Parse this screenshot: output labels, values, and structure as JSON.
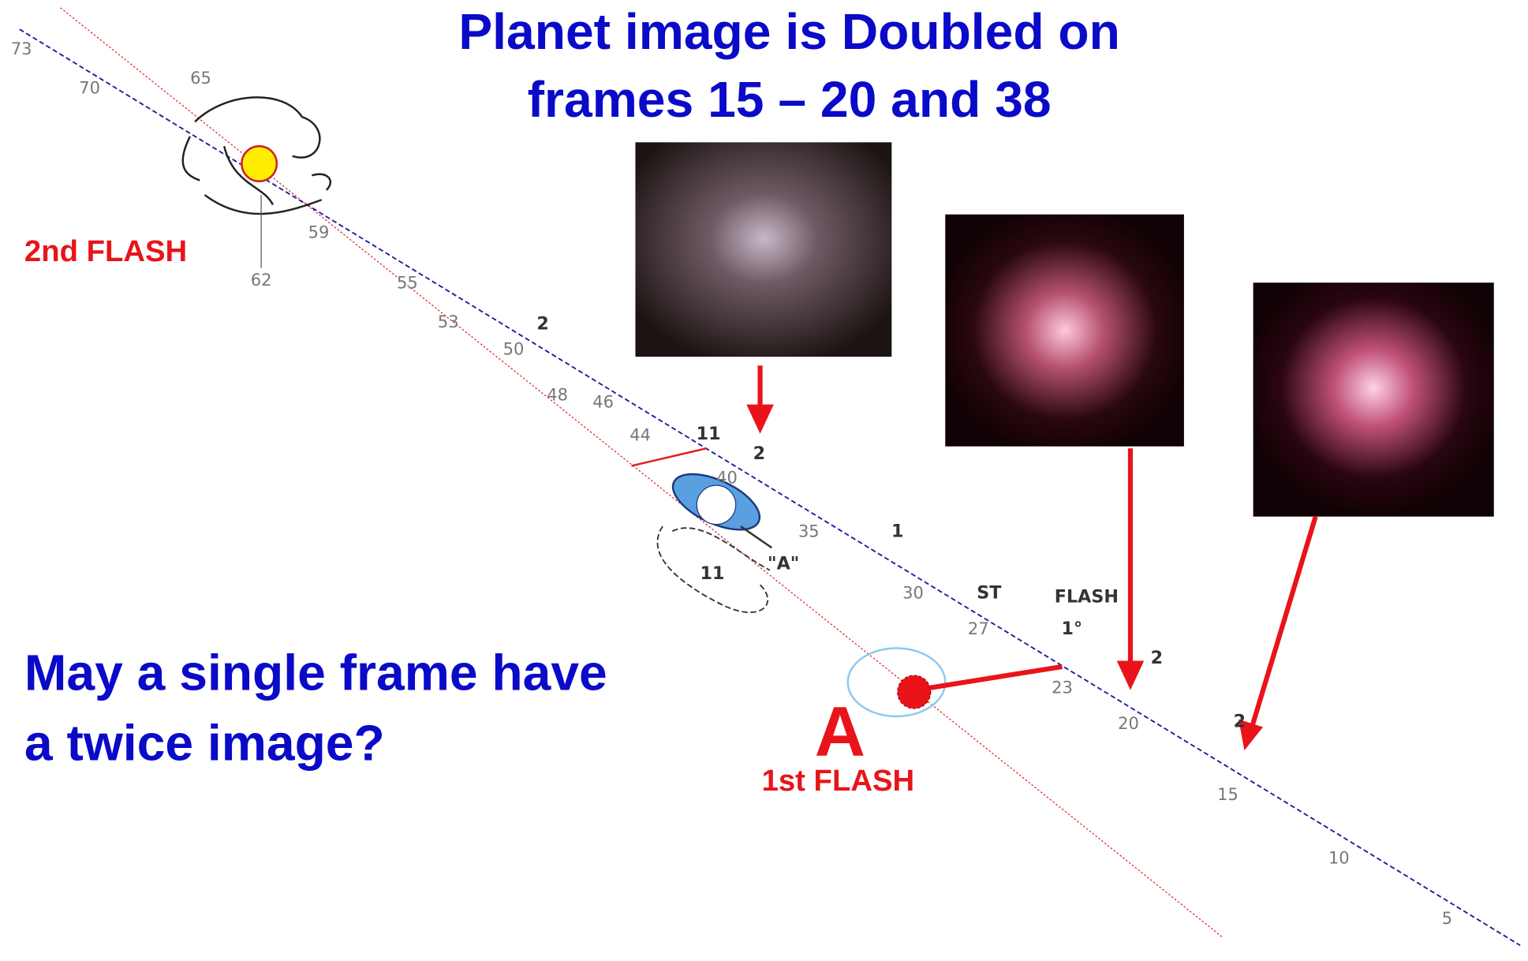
{
  "title_lines": [
    "Planet image is Doubled on",
    "frames 15 – 20 and 38"
  ],
  "question_lines": [
    "May a single frame have",
    "a twice image?"
  ],
  "labels": {
    "second_flash": "2nd FLASH",
    "first_flash": "1st FLASH",
    "point_a": "A"
  },
  "frame_numbers": [
    "73",
    "70",
    "65",
    "62",
    "59",
    "55",
    "53",
    "50",
    "48",
    "46",
    "44",
    "40",
    "35",
    "30",
    "27",
    "23",
    "20",
    "15",
    "10",
    "5"
  ],
  "sketch_notes": [
    "2",
    "11",
    "2",
    "1",
    "\"A\"",
    "11",
    "ST",
    "FLASH",
    "1°",
    "2",
    "2"
  ]
}
